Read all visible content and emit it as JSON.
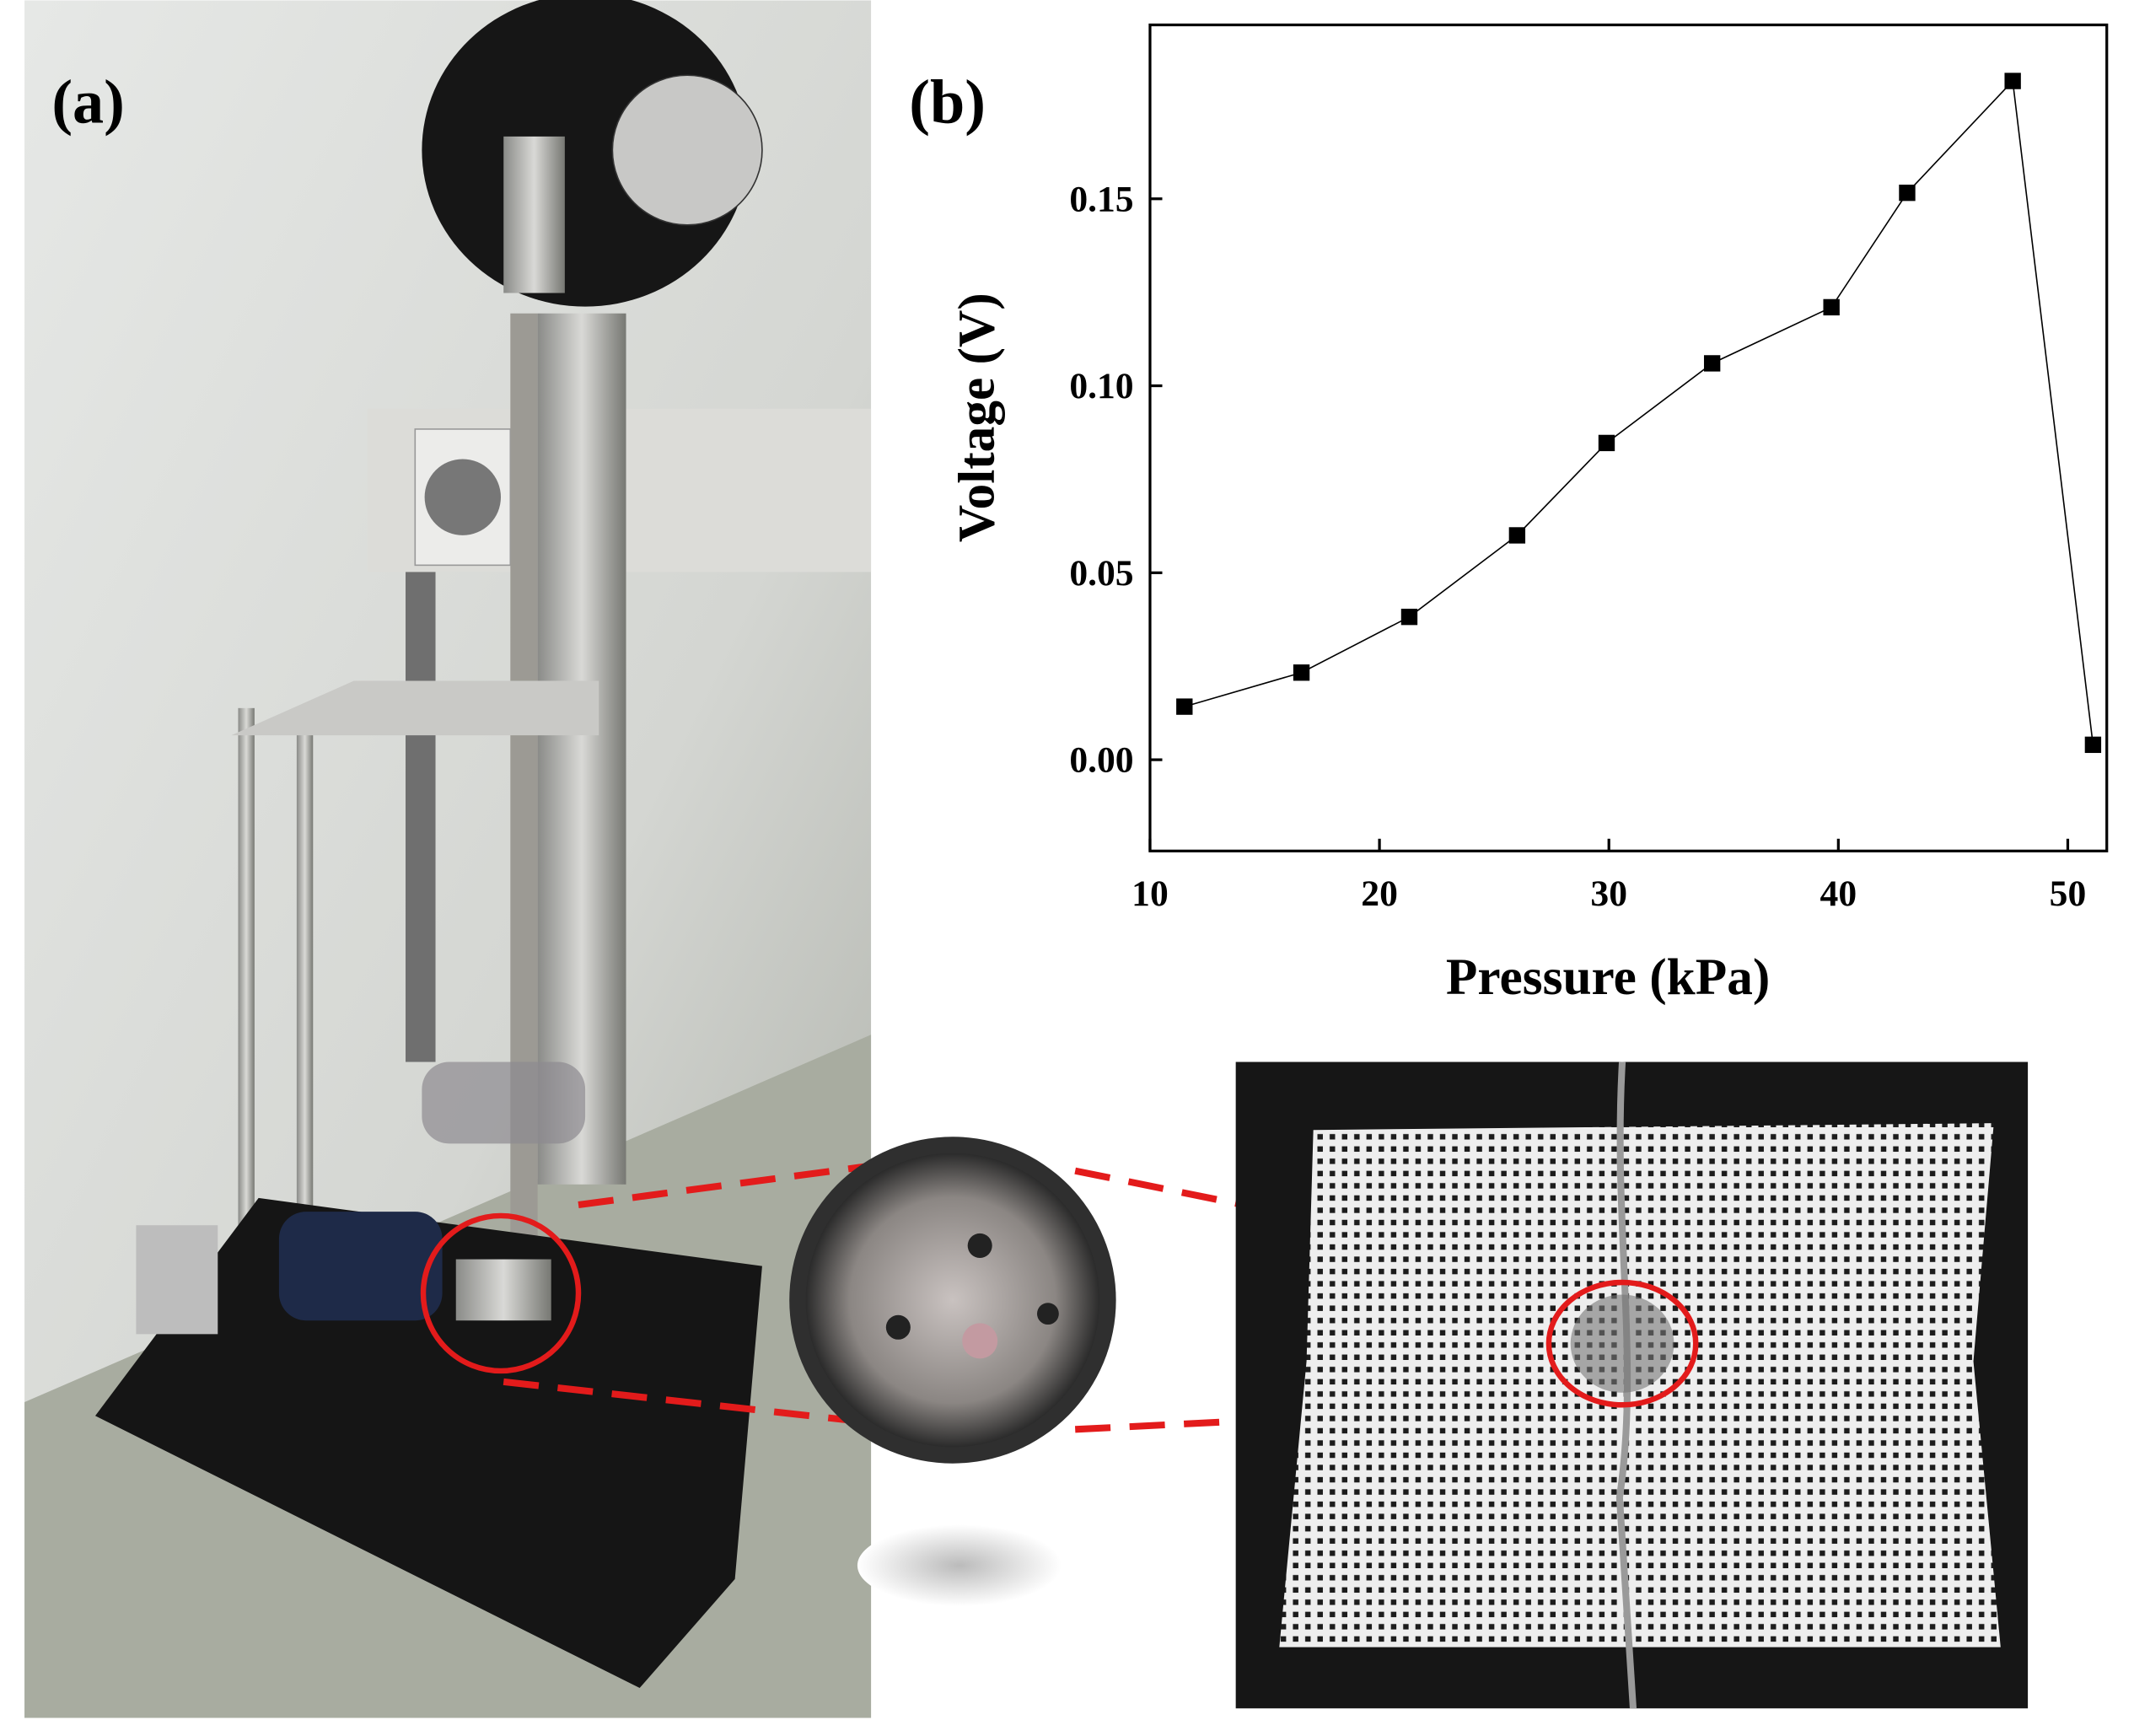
{
  "panel_labels": [
    "(a)",
    "(b)"
  ],
  "chart_data": {
    "type": "line",
    "x_label": "Pressure (kPa)",
    "y_label": "Voltage (V)",
    "x": [
      11.5,
      16.6,
      21.3,
      26.0,
      29.9,
      34.5,
      39.7,
      43.0,
      47.6,
      51.1
    ],
    "series": [
      {
        "name": "Voltage",
        "color": "#000000",
        "values": [
          0.0142,
          0.0233,
          0.0382,
          0.06,
          0.0847,
          0.106,
          0.121,
          0.1516,
          0.1815,
          0.004
        ]
      }
    ],
    "xlim": [
      10,
      51.7
    ],
    "ylim": [
      -0.0244,
      0.1965
    ],
    "xticks": [
      10,
      20,
      30,
      40,
      50
    ],
    "yticks": [
      {
        "value": 0,
        "label": "0.00"
      },
      {
        "value": 0.05,
        "label": "0.05"
      },
      {
        "value": 0.1,
        "label": "0.10"
      },
      {
        "value": 0.15,
        "label": "0.15"
      }
    ],
    "marker": "square"
  }
}
